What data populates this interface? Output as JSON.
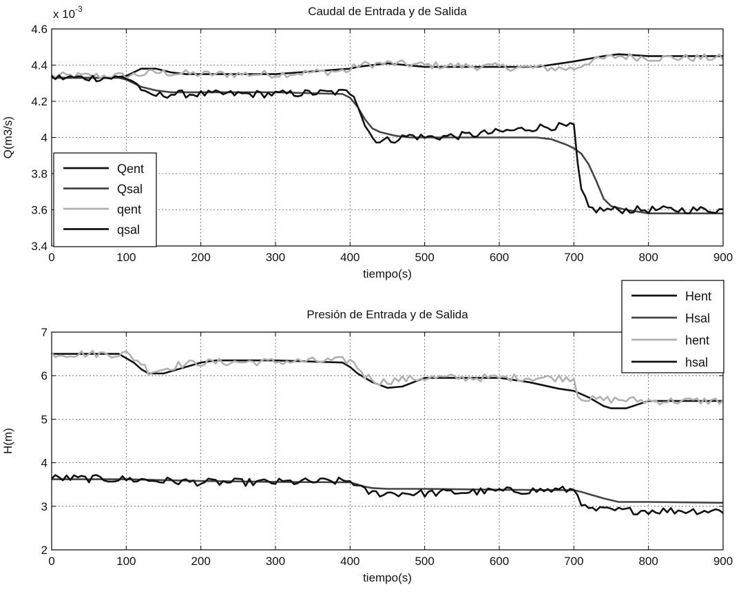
{
  "chart_data": [
    {
      "type": "line",
      "title": "Caudal de Entrada y de Salida",
      "xlabel": "tiempo(s)",
      "ylabel": "Q(m3/s)",
      "exponent_label": "x 10",
      "exponent_power": "-3",
      "xlim": [
        0,
        900
      ],
      "ylim": [
        3.4,
        4.6
      ],
      "xticks": [
        0,
        100,
        200,
        300,
        400,
        500,
        600,
        700,
        800,
        900
      ],
      "yticks": [
        3.4,
        3.6,
        3.8,
        4,
        4.2,
        4.4,
        4.6
      ],
      "ytick_labels": [
        "3.4",
        "3.6",
        "3.8",
        "4",
        "4.2",
        "4.4",
        "4.6"
      ],
      "grid": true,
      "legend": "left-lower",
      "series": [
        {
          "name": "Qent",
          "color": "#111111",
          "noise": false,
          "x": [
            0,
            80,
            100,
            110,
            120,
            130,
            140,
            150,
            160,
            180,
            200,
            300,
            400,
            410,
            450,
            500,
            600,
            650,
            700,
            740,
            760,
            800,
            900
          ],
          "y": [
            4.33,
            4.33,
            4.34,
            4.36,
            4.38,
            4.38,
            4.38,
            4.37,
            4.36,
            4.35,
            4.35,
            4.35,
            4.38,
            4.39,
            4.41,
            4.39,
            4.39,
            4.39,
            4.42,
            4.45,
            4.46,
            4.45,
            4.45
          ]
        },
        {
          "name": "Qsal",
          "color": "#444444",
          "noise": false,
          "x": [
            0,
            90,
            100,
            120,
            140,
            160,
            180,
            200,
            300,
            390,
            400,
            410,
            420,
            430,
            440,
            460,
            480,
            500,
            650,
            670,
            690,
            700,
            710,
            720,
            730,
            740,
            750,
            770,
            800,
            900
          ],
          "y": [
            4.33,
            4.33,
            4.32,
            4.28,
            4.26,
            4.25,
            4.25,
            4.25,
            4.25,
            4.24,
            4.22,
            4.17,
            4.1,
            4.05,
            4.03,
            4.01,
            4.0,
            4.0,
            4.0,
            3.99,
            3.96,
            3.94,
            3.91,
            3.85,
            3.76,
            3.66,
            3.62,
            3.6,
            3.58,
            3.58
          ]
        },
        {
          "name": "qent",
          "color": "#b0b0b0",
          "noise": true,
          "x": [
            0,
            100,
            120,
            140,
            200,
            300,
            400,
            410,
            450,
            500,
            600,
            700,
            720,
            760,
            800,
            900
          ],
          "y": [
            4.34,
            4.34,
            4.35,
            4.36,
            4.35,
            4.35,
            4.37,
            4.4,
            4.41,
            4.4,
            4.39,
            4.38,
            4.42,
            4.45,
            4.44,
            4.44
          ]
        },
        {
          "name": "qsal",
          "color": "#111111",
          "noise": true,
          "x": [
            0,
            100,
            110,
            120,
            125,
            130,
            160,
            200,
            300,
            390,
            400,
            405,
            410,
            420,
            430,
            440,
            460,
            480,
            500,
            550,
            600,
            640,
            660,
            700,
            705,
            710,
            720,
            730,
            760,
            800,
            900
          ],
          "y": [
            4.33,
            4.33,
            4.31,
            4.27,
            4.24,
            4.23,
            4.24,
            4.24,
            4.24,
            4.25,
            4.25,
            4.24,
            4.19,
            4.07,
            4.0,
            3.98,
            3.99,
            4.01,
            4.0,
            4.01,
            4.03,
            4.05,
            4.06,
            4.06,
            3.85,
            3.7,
            3.61,
            3.6,
            3.6,
            3.6,
            3.6
          ]
        }
      ]
    },
    {
      "type": "line",
      "title": "Presión de Entrada y de Salida",
      "xlabel": "tiempo(s)",
      "ylabel": "H(m)",
      "xlim": [
        0,
        900
      ],
      "ylim": [
        2,
        7
      ],
      "xticks": [
        0,
        100,
        200,
        300,
        400,
        500,
        600,
        700,
        800,
        900
      ],
      "yticks": [
        2,
        3,
        4,
        5,
        6,
        7
      ],
      "ytick_labels": [
        "2",
        "3",
        "4",
        "5",
        "6",
        "7"
      ],
      "grid": true,
      "legend": "top-right",
      "series": [
        {
          "name": "Hent",
          "color": "#111111",
          "noise": false,
          "x": [
            0,
            90,
            100,
            110,
            120,
            130,
            150,
            170,
            200,
            220,
            300,
            390,
            400,
            410,
            420,
            430,
            450,
            470,
            500,
            600,
            640,
            680,
            700,
            720,
            740,
            750,
            770,
            800,
            900
          ],
          "y": [
            6.5,
            6.5,
            6.4,
            6.3,
            6.15,
            6.05,
            6.05,
            6.15,
            6.3,
            6.35,
            6.35,
            6.3,
            6.2,
            6.05,
            5.95,
            5.85,
            5.72,
            5.75,
            5.95,
            5.95,
            5.85,
            5.7,
            5.65,
            5.5,
            5.3,
            5.25,
            5.25,
            5.42,
            5.42
          ]
        },
        {
          "name": "Hsal",
          "color": "#444444",
          "noise": false,
          "x": [
            0,
            100,
            200,
            300,
            400,
            410,
            420,
            430,
            450,
            500,
            600,
            700,
            710,
            720,
            740,
            760,
            800,
            900
          ],
          "y": [
            3.62,
            3.62,
            3.58,
            3.56,
            3.55,
            3.5,
            3.45,
            3.42,
            3.4,
            3.4,
            3.38,
            3.37,
            3.33,
            3.28,
            3.18,
            3.1,
            3.1,
            3.08
          ]
        },
        {
          "name": "hent",
          "color": "#b0b0b0",
          "noise": true,
          "x": [
            0,
            100,
            120,
            130,
            150,
            170,
            200,
            300,
            400,
            410,
            420,
            440,
            460,
            500,
            600,
            700,
            705,
            720,
            760,
            800,
            900
          ],
          "y": [
            6.5,
            6.5,
            6.3,
            6.1,
            6.15,
            6.25,
            6.3,
            6.32,
            6.35,
            6.2,
            6.0,
            5.85,
            5.9,
            5.95,
            5.95,
            5.95,
            5.55,
            5.45,
            5.45,
            5.42,
            5.42
          ]
        },
        {
          "name": "hsal",
          "color": "#111111",
          "noise": true,
          "x": [
            0,
            100,
            200,
            300,
            400,
            405,
            410,
            420,
            430,
            460,
            500,
            600,
            700,
            705,
            710,
            715,
            720,
            760,
            800,
            900
          ],
          "y": [
            3.65,
            3.62,
            3.55,
            3.55,
            3.58,
            3.55,
            3.45,
            3.35,
            3.3,
            3.3,
            3.3,
            3.35,
            3.38,
            3.3,
            3.1,
            2.95,
            2.92,
            2.9,
            2.9,
            2.9
          ]
        }
      ]
    }
  ]
}
